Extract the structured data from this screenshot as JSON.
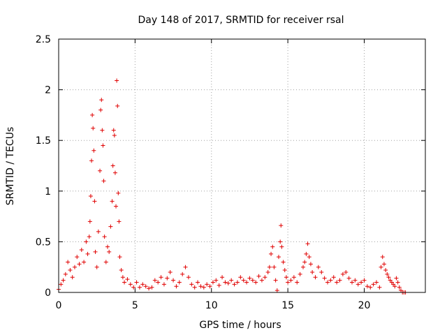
{
  "chart_data": {
    "type": "scatter",
    "title": "Day 148 of 2017, SRMTID for receiver rsal",
    "xlabel": "GPS time / hours",
    "ylabel": "SRMTID / TECUs",
    "xlim": [
      0,
      24
    ],
    "ylim": [
      0,
      2.5
    ],
    "x_ticks": [
      "0",
      "5",
      "10",
      "15",
      "20"
    ],
    "x_tick_values": [
      0,
      5,
      10,
      15,
      20
    ],
    "y_ticks": [
      "0",
      "0.5",
      "1",
      "1.5",
      "2",
      "2.5"
    ],
    "y_tick_values": [
      0,
      0.5,
      1,
      1.5,
      2,
      2.5
    ],
    "grid": true,
    "marker": "plus",
    "series": [
      {
        "color": "#e00000",
        "x": [
          0.0,
          0.15,
          0.3,
          0.45,
          0.6,
          0.75,
          0.9,
          1.05,
          1.2,
          1.35,
          1.5,
          1.65,
          1.8,
          1.9,
          2.0,
          2.05,
          2.1,
          2.15,
          2.2,
          2.25,
          2.3,
          2.35,
          2.4,
          2.5,
          2.6,
          2.7,
          2.75,
          2.8,
          2.85,
          2.9,
          2.95,
          3.0,
          3.1,
          3.2,
          3.3,
          3.4,
          3.5,
          3.55,
          3.6,
          3.65,
          3.7,
          3.75,
          3.8,
          3.85,
          3.9,
          3.95,
          4.0,
          4.1,
          4.2,
          4.3,
          4.5,
          4.7,
          4.9,
          5.1,
          5.3,
          5.5,
          5.7,
          5.9,
          6.1,
          6.3,
          6.5,
          6.7,
          6.9,
          7.1,
          7.3,
          7.5,
          7.7,
          7.9,
          8.1,
          8.3,
          8.5,
          8.7,
          8.9,
          9.1,
          9.3,
          9.5,
          9.7,
          9.9,
          10.1,
          10.3,
          10.5,
          10.7,
          10.9,
          11.1,
          11.3,
          11.5,
          11.7,
          11.9,
          12.1,
          12.3,
          12.5,
          12.7,
          12.9,
          13.1,
          13.3,
          13.5,
          13.7,
          13.8,
          13.9,
          14.0,
          14.1,
          14.2,
          14.3,
          14.4,
          14.5,
          14.55,
          14.6,
          14.7,
          14.8,
          14.9,
          15.0,
          15.2,
          15.4,
          15.6,
          15.8,
          16.0,
          16.1,
          16.2,
          16.3,
          16.4,
          16.5,
          16.6,
          16.8,
          17.0,
          17.2,
          17.4,
          17.6,
          17.8,
          18.0,
          18.2,
          18.4,
          18.6,
          18.8,
          19.0,
          19.2,
          19.4,
          19.6,
          19.8,
          20.0,
          20.2,
          20.4,
          20.6,
          20.8,
          21.0,
          21.1,
          21.2,
          21.3,
          21.4,
          21.5,
          21.6,
          21.7,
          21.8,
          21.9,
          22.0,
          22.1,
          22.2,
          22.3,
          22.4,
          22.5,
          22.6,
          22.7
        ],
        "y": [
          0.03,
          0.08,
          0.12,
          0.18,
          0.3,
          0.22,
          0.15,
          0.25,
          0.35,
          0.28,
          0.42,
          0.3,
          0.5,
          0.38,
          0.55,
          0.7,
          0.95,
          1.3,
          1.75,
          1.62,
          1.4,
          0.9,
          0.4,
          0.25,
          0.6,
          1.2,
          1.8,
          1.9,
          1.6,
          1.45,
          1.1,
          0.55,
          0.3,
          0.45,
          0.4,
          0.65,
          0.9,
          1.25,
          1.6,
          1.55,
          1.18,
          0.85,
          2.09,
          1.84,
          0.98,
          0.7,
          0.35,
          0.22,
          0.15,
          0.1,
          0.13,
          0.08,
          0.05,
          0.1,
          0.05,
          0.08,
          0.06,
          0.04,
          0.05,
          0.12,
          0.1,
          0.15,
          0.08,
          0.14,
          0.2,
          0.12,
          0.06,
          0.1,
          0.18,
          0.25,
          0.15,
          0.08,
          0.05,
          0.1,
          0.06,
          0.05,
          0.08,
          0.06,
          0.1,
          0.12,
          0.07,
          0.15,
          0.1,
          0.09,
          0.12,
          0.08,
          0.1,
          0.15,
          0.12,
          0.1,
          0.14,
          0.12,
          0.1,
          0.16,
          0.12,
          0.15,
          0.2,
          0.25,
          0.38,
          0.45,
          0.25,
          0.12,
          0.02,
          0.35,
          0.5,
          0.66,
          0.45,
          0.3,
          0.22,
          0.15,
          0.1,
          0.12,
          0.15,
          0.1,
          0.18,
          0.25,
          0.3,
          0.38,
          0.48,
          0.35,
          0.28,
          0.2,
          0.15,
          0.25,
          0.2,
          0.14,
          0.1,
          0.12,
          0.15,
          0.1,
          0.12,
          0.18,
          0.2,
          0.14,
          0.1,
          0.12,
          0.08,
          0.1,
          0.12,
          0.06,
          0.05,
          0.08,
          0.1,
          0.05,
          0.25,
          0.35,
          0.28,
          0.22,
          0.18,
          0.15,
          0.12,
          0.1,
          0.08,
          0.06,
          0.14,
          0.1,
          0.05,
          0.02,
          0.0,
          0.0,
          0.0
        ]
      }
    ]
  }
}
